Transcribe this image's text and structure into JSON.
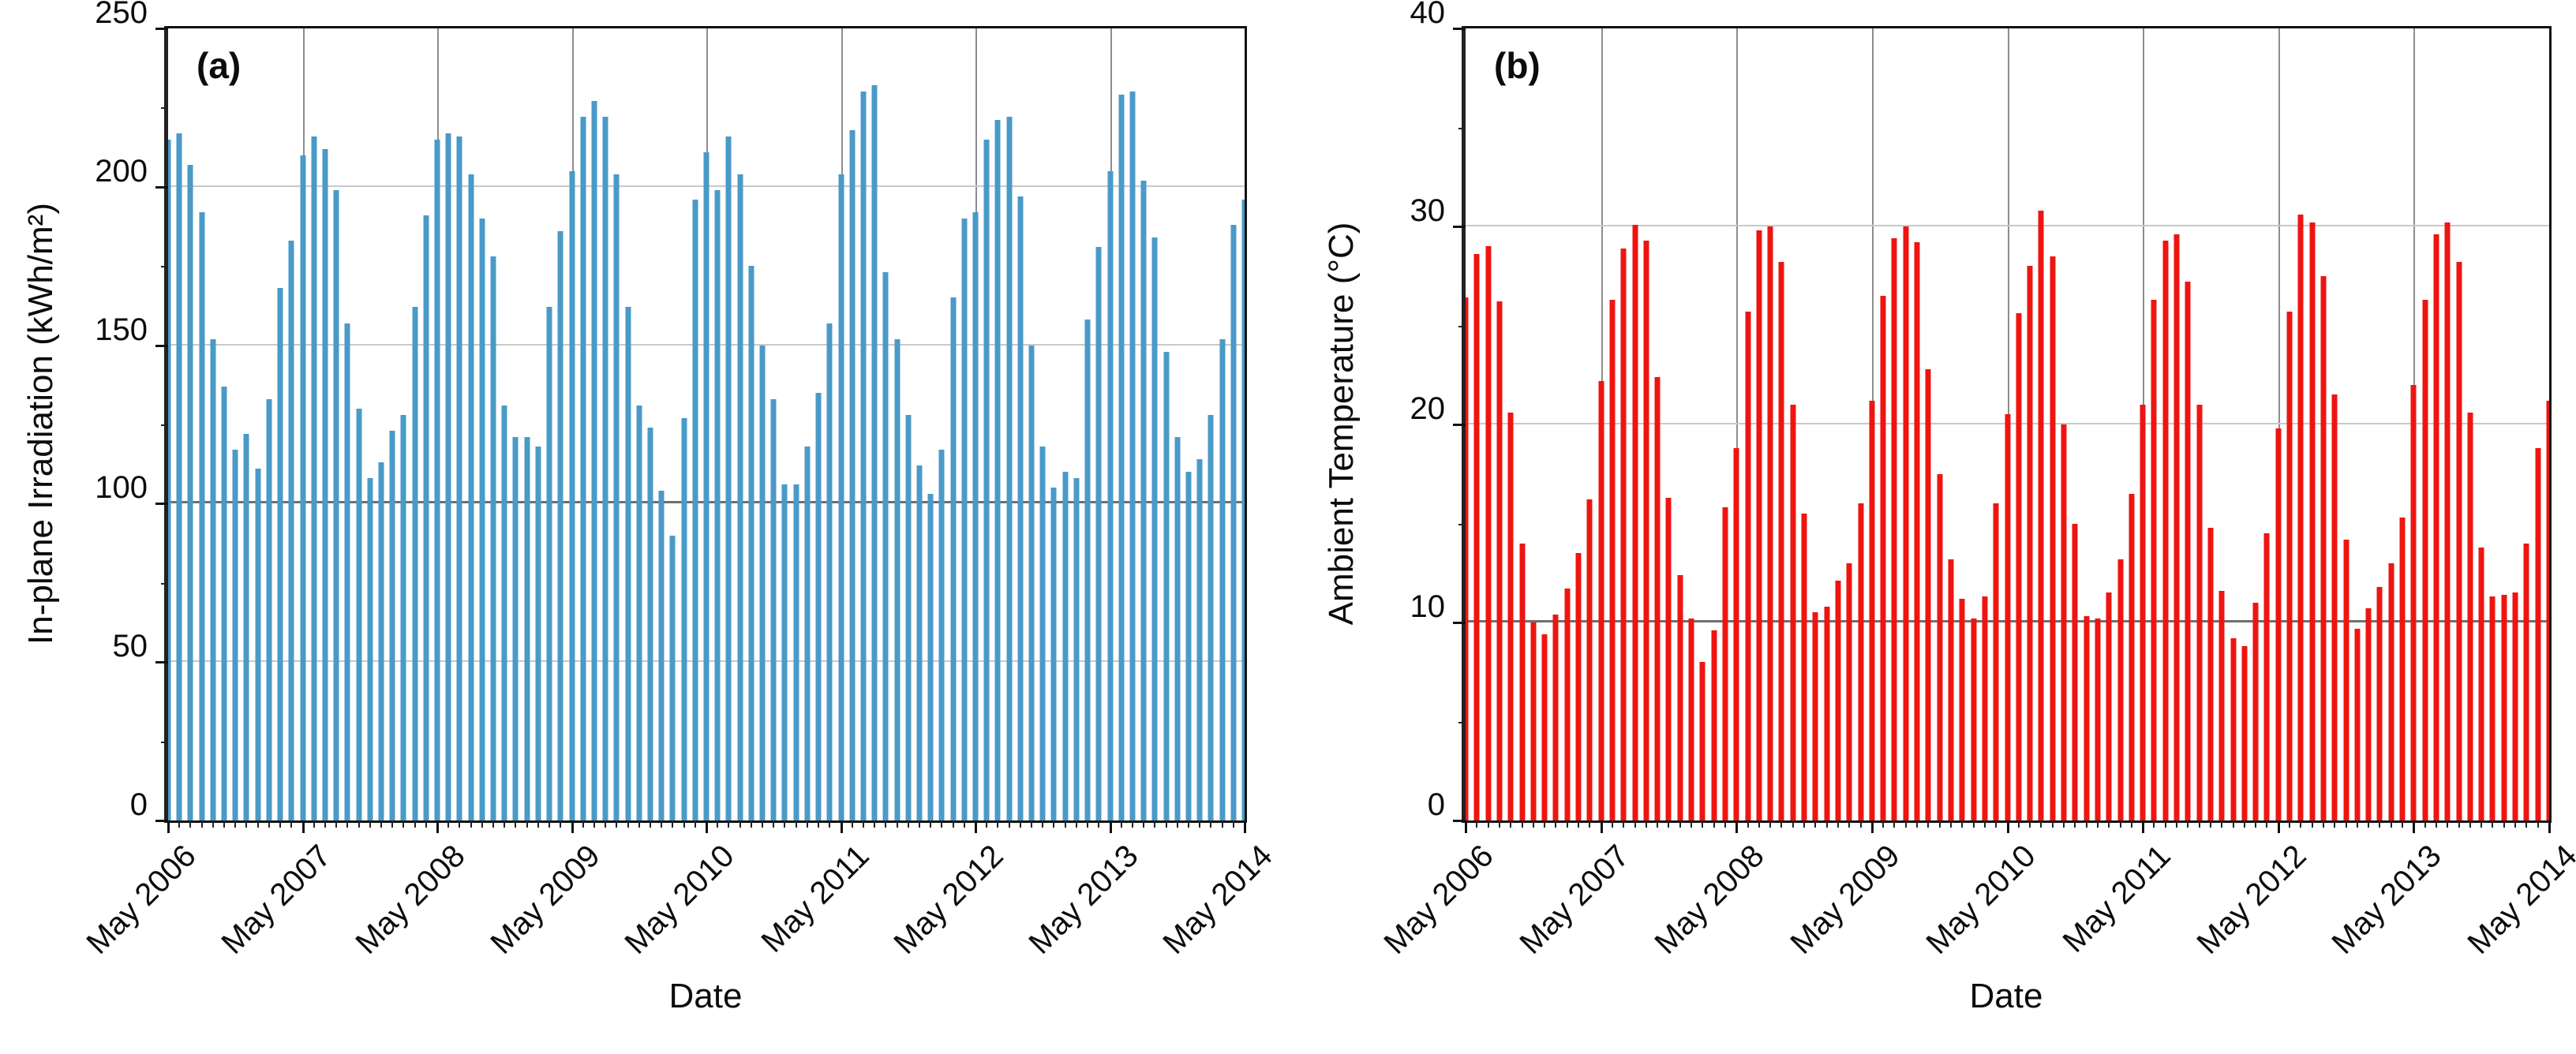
{
  "figure": {
    "background": "#ffffff",
    "xlabel": "Date",
    "x_tick_labels": [
      "May 2006",
      "May 2007",
      "May 2008",
      "May 2009",
      "May 2010",
      "May 2011",
      "May 2012",
      "May 2013",
      "May 2014"
    ],
    "months_per_major_tick": 12
  },
  "colors": {
    "irradiation_bar": "#4a9ac8",
    "temperature_bar": "#ee1511",
    "grid_light": "#c9c9c9",
    "grid_dark": "#6f6f6f",
    "axis": "#111111"
  },
  "chart_data": [
    {
      "type": "bar",
      "panel_letter": "(a)",
      "ylabel": "In-plane Irradiation (kWh/m²)",
      "xlabel": "Date",
      "ylim": [
        0,
        250
      ],
      "ytick_step": 50,
      "ytick_minor_step": 25,
      "emphasis_gridline": 100,
      "grid": true,
      "bar_color": "#4a9ac8",
      "x_start": "May 2006",
      "x_end": "May 2014",
      "x_tick_labels": [
        "May 2006",
        "May 2007",
        "May 2008",
        "May 2009",
        "May 2010",
        "May 2011",
        "May 2012",
        "May 2013",
        "May 2014"
      ],
      "values": [
        215,
        217,
        207,
        192,
        152,
        137,
        117,
        122,
        111,
        133,
        168,
        183,
        210,
        216,
        212,
        199,
        157,
        130,
        108,
        113,
        123,
        128,
        162,
        191,
        215,
        217,
        216,
        204,
        190,
        178,
        131,
        121,
        121,
        118,
        162,
        186,
        205,
        222,
        227,
        222,
        204,
        162,
        131,
        124,
        104,
        90,
        127,
        196,
        211,
        199,
        216,
        204,
        175,
        150,
        133,
        106,
        106,
        118,
        135,
        157,
        204,
        218,
        230,
        232,
        173,
        152,
        128,
        112,
        103,
        117,
        165,
        190,
        192,
        215,
        221,
        222,
        197,
        150,
        118,
        105,
        110,
        108,
        158,
        181,
        205,
        229,
        230,
        202,
        184,
        148,
        121,
        110,
        114,
        128,
        152,
        188,
        196
      ]
    },
    {
      "type": "bar",
      "panel_letter": "(b)",
      "ylabel": "Ambient Temperature (°C)",
      "xlabel": "Date",
      "ylim": [
        0,
        40
      ],
      "ytick_step": 10,
      "ytick_minor_step": 5,
      "emphasis_gridline": 10,
      "grid": true,
      "bar_color": "#ee1511",
      "x_start": "May 2006",
      "x_end": "May 2014",
      "x_tick_labels": [
        "May 2006",
        "May 2007",
        "May 2008",
        "May 2009",
        "May 2010",
        "May 2011",
        "May 2012",
        "May 2013",
        "May 2014"
      ],
      "values": [
        26.4,
        28.6,
        29.0,
        26.2,
        20.6,
        14.0,
        10.0,
        9.4,
        10.4,
        11.7,
        13.5,
        16.2,
        22.2,
        26.3,
        28.9,
        30.1,
        29.3,
        22.4,
        16.3,
        12.4,
        10.2,
        8.0,
        9.6,
        15.8,
        18.8,
        25.7,
        29.8,
        30.0,
        28.2,
        21.0,
        15.5,
        10.5,
        10.8,
        12.1,
        13.0,
        16.0,
        21.2,
        26.5,
        29.4,
        30.0,
        29.2,
        22.8,
        17.5,
        13.2,
        11.2,
        10.2,
        11.3,
        16.0,
        20.5,
        25.6,
        28.0,
        30.8,
        28.5,
        20.0,
        15.0,
        10.3,
        10.2,
        11.5,
        13.2,
        16.5,
        21.0,
        26.3,
        29.3,
        29.6,
        27.2,
        21.0,
        14.8,
        11.6,
        9.2,
        8.8,
        11.0,
        14.5,
        19.8,
        25.7,
        30.6,
        30.2,
        27.5,
        21.5,
        14.2,
        9.7,
        10.7,
        11.8,
        13.0,
        15.3,
        22.0,
        26.3,
        29.6,
        30.2,
        28.2,
        20.6,
        13.8,
        11.3,
        11.4,
        11.5,
        14.0,
        18.8,
        21.2
      ]
    }
  ]
}
